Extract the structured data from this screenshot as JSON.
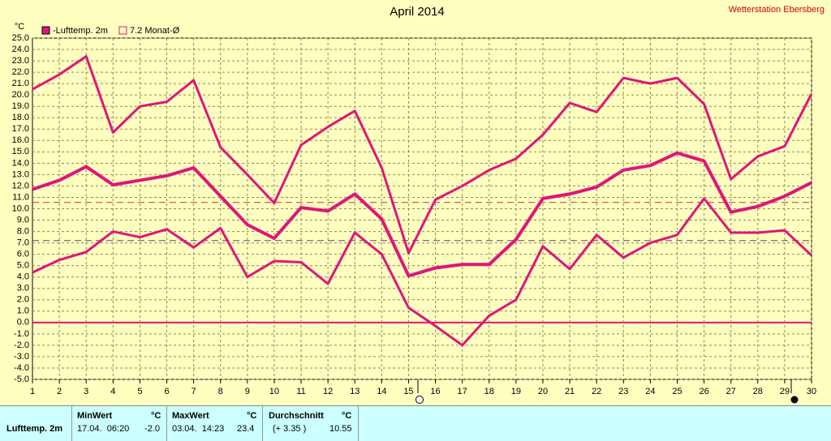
{
  "chart_data": {
    "type": "line",
    "title": "April 2014",
    "source": "Wetterstation Ebersberg",
    "y_unit": "°C",
    "categories": [
      "1",
      "2",
      "3",
      "4",
      "5",
      "6",
      "7",
      "8",
      "9",
      "10",
      "11",
      "12",
      "13",
      "14",
      "15",
      "16",
      "17",
      "18",
      "19",
      "20",
      "21",
      "22",
      "23",
      "24",
      "25",
      "26",
      "27",
      "28",
      "29",
      "30"
    ],
    "series": [
      {
        "color": "#e0157a",
        "width": 3,
        "values": [
          20.5,
          21.8,
          23.4,
          16.7,
          19.0,
          19.4,
          21.3,
          15.4,
          13.0,
          10.5,
          15.6,
          17.2,
          18.6,
          13.6,
          6.1,
          10.8,
          12.0,
          13.4,
          14.4,
          16.5,
          19.3,
          18.5,
          21.5,
          21.0,
          21.5,
          19.2,
          12.6,
          14.6,
          15.5,
          20.1
        ]
      },
      {
        "color": "#e0157a",
        "width": 4,
        "values": [
          11.7,
          12.5,
          13.7,
          12.1,
          12.5,
          12.9,
          13.6,
          11.1,
          8.6,
          7.4,
          10.1,
          9.8,
          11.3,
          9.1,
          4.1,
          4.8,
          5.1,
          5.1,
          7.3,
          10.9,
          11.3,
          11.9,
          13.4,
          13.8,
          14.9,
          14.2,
          9.7,
          10.2,
          11.1,
          12.3
        ]
      },
      {
        "color": "#e0157a",
        "width": 3,
        "values": [
          4.4,
          5.5,
          6.2,
          8.0,
          7.5,
          8.2,
          6.6,
          8.3,
          4.0,
          5.4,
          5.3,
          3.4,
          7.9,
          6.0,
          1.3,
          -0.3,
          -2.0,
          0.6,
          2.0,
          6.7,
          4.7,
          7.7,
          5.7,
          7.0,
          7.7,
          10.9,
          7.9,
          7.9,
          8.1,
          5.9
        ]
      }
    ],
    "legend": [
      {
        "label": "-Lufttemp. 2m",
        "color": "#e0157a",
        "filled": true
      },
      {
        "label": "7.2 Monat-Ø",
        "color": "#e0157a",
        "filled": false
      }
    ],
    "reference_lines": [
      {
        "value": 10.55,
        "color": "#c03050"
      },
      {
        "value": 7.2,
        "color": "#604080"
      }
    ],
    "zero_color": "#e0157a",
    "ylim": [
      -5,
      25
    ],
    "yticks": [
      {
        "value": -5,
        "label": "-5.0"
      },
      {
        "value": -4,
        "label": "-4.0"
      },
      {
        "value": -3,
        "label": "-3.0"
      },
      {
        "value": -2,
        "label": "-2.0"
      },
      {
        "value": -1,
        "label": "-1.0"
      },
      {
        "value": 0,
        "label": "0.0"
      },
      {
        "value": 1,
        "label": "1.0"
      },
      {
        "value": 2,
        "label": "2.0"
      },
      {
        "value": 3,
        "label": "3.0"
      },
      {
        "value": 4,
        "label": "4.0"
      },
      {
        "value": 5,
        "label": "5.0"
      },
      {
        "value": 6,
        "label": "6.0"
      },
      {
        "value": 7,
        "label": "7.0"
      },
      {
        "value": 8,
        "label": "8.0"
      },
      {
        "value": 9,
        "label": "9.0"
      },
      {
        "value": 10,
        "label": "10.0"
      },
      {
        "value": 11,
        "label": "11.0"
      },
      {
        "value": 12,
        "label": "12.0"
      },
      {
        "value": 13,
        "label": "13.0"
      },
      {
        "value": 14,
        "label": "14.0"
      },
      {
        "value": 15,
        "label": "15.0"
      },
      {
        "value": 16,
        "label": "16.0"
      },
      {
        "value": 17,
        "label": "17.0"
      },
      {
        "value": 18,
        "label": "18.0"
      },
      {
        "value": 19,
        "label": "19.0"
      },
      {
        "value": 20,
        "label": "20.0"
      },
      {
        "value": 21,
        "label": "21.0"
      },
      {
        "value": 22,
        "label": "22.0"
      },
      {
        "value": 23,
        "label": "23.0"
      },
      {
        "value": 24,
        "label": "24.0"
      },
      {
        "value": 25,
        "label": "25.0"
      }
    ],
    "grid": true
  },
  "table": {
    "headers": [
      "MinWert",
      "°C",
      "MaxWert",
      "°C",
      "Durchschnitt",
      "°C"
    ],
    "rows": [
      [
        "Lufttemp. 2m",
        "17.04.  06:20",
        "-2.0",
        "03.04.  14:23",
        "23.4",
        "(+ 3.35 )",
        "10.55"
      ]
    ]
  }
}
